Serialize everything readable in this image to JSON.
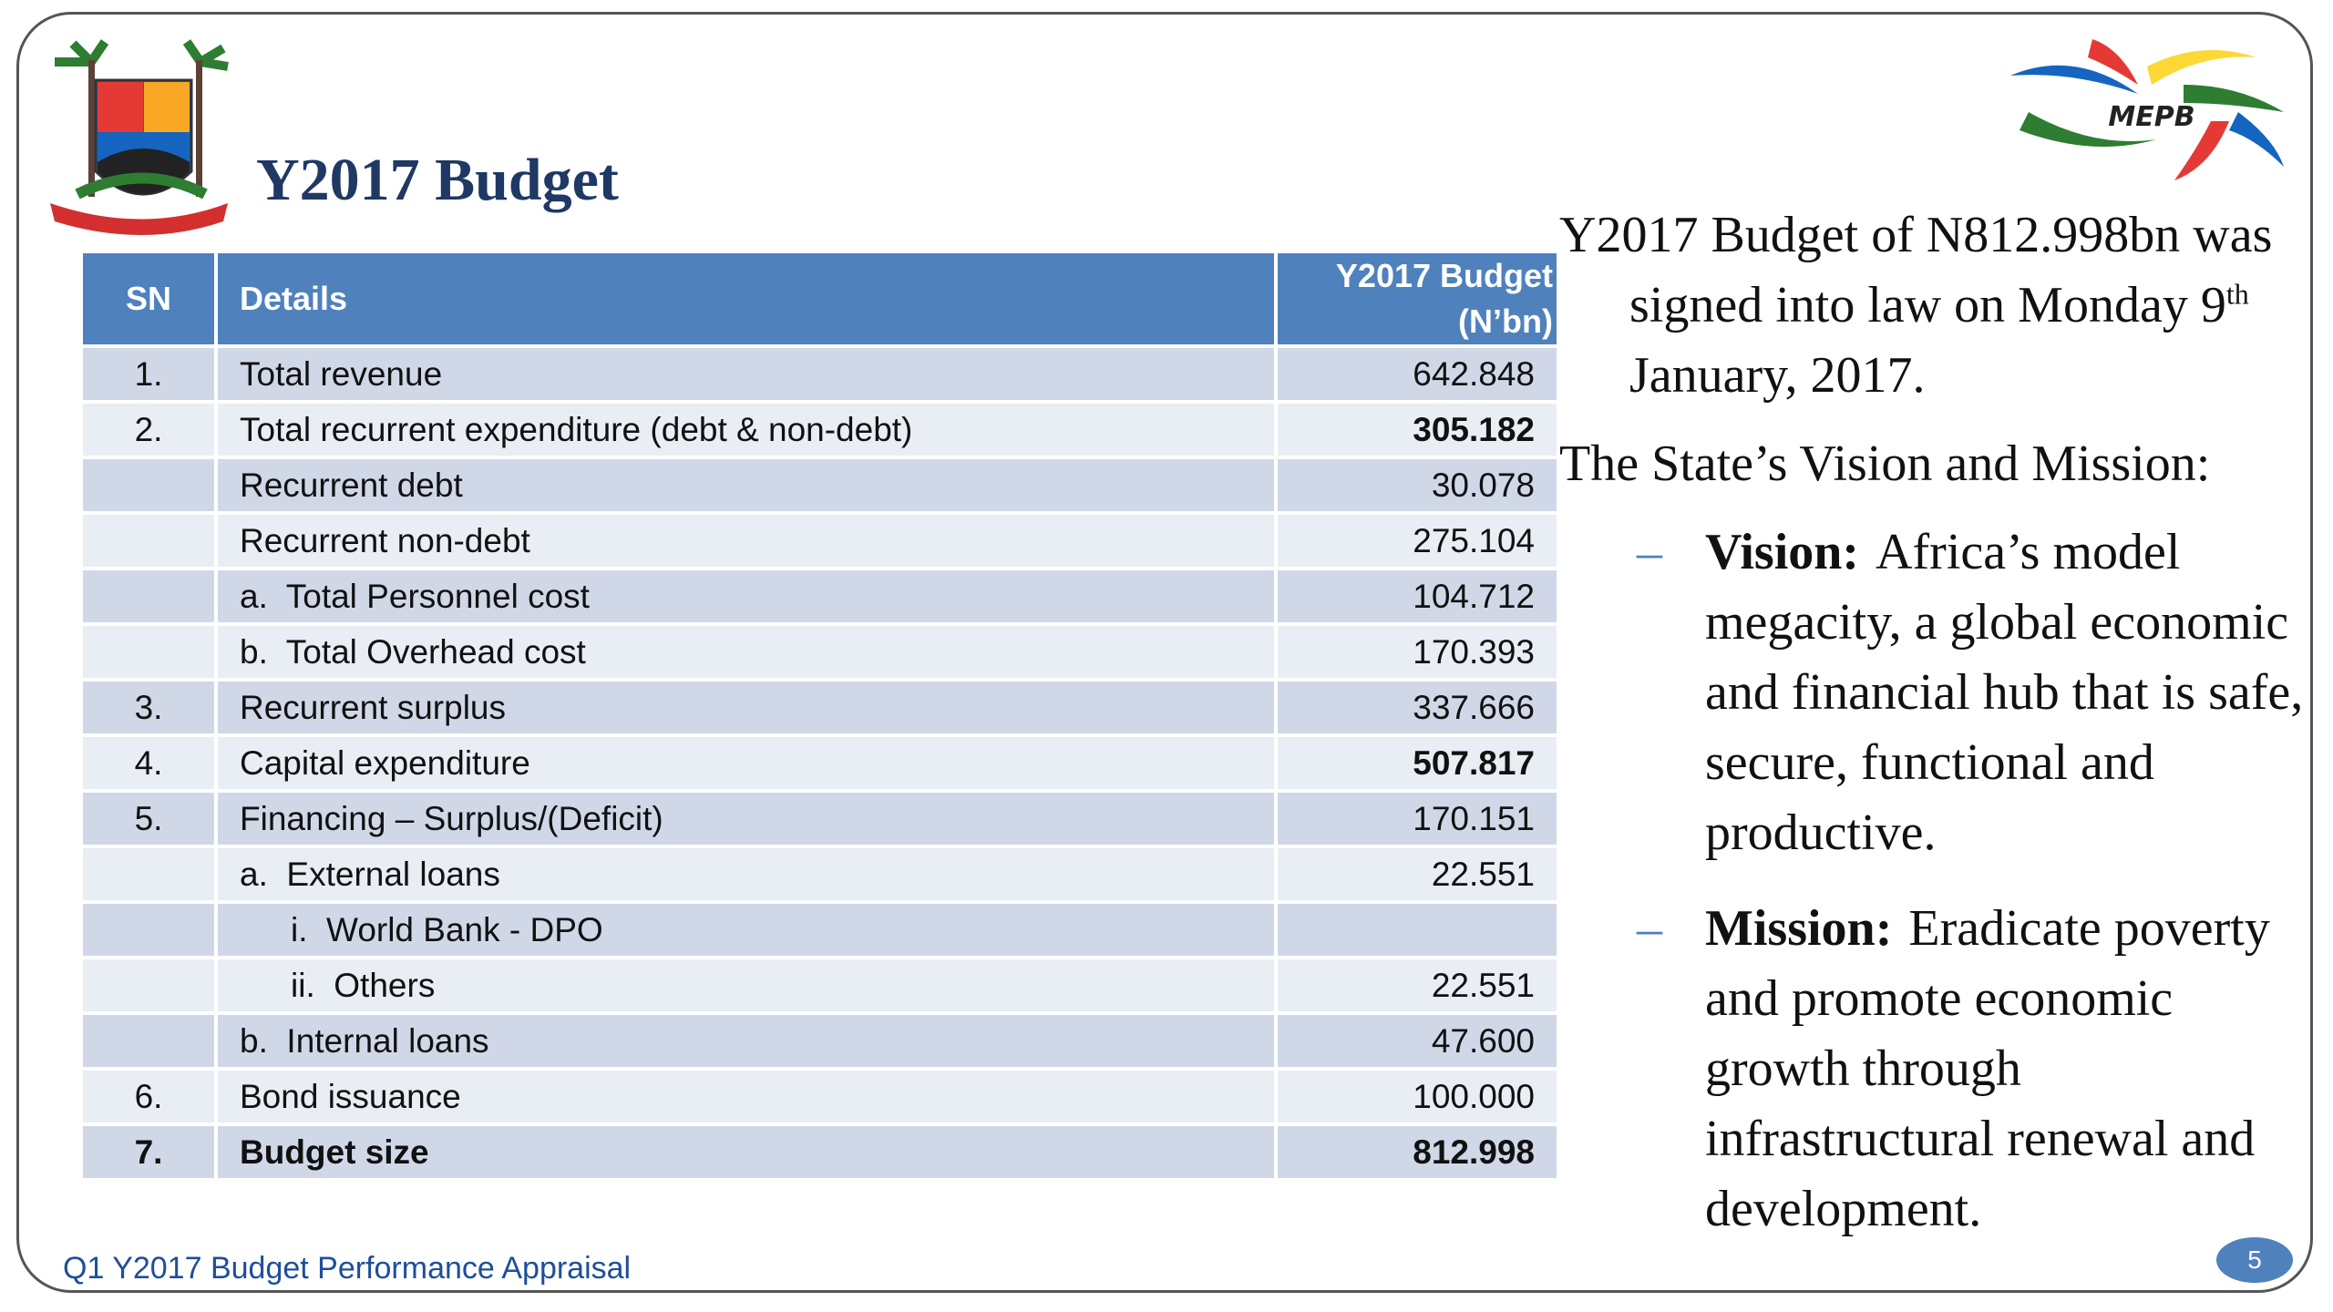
{
  "header": {
    "title": "Y2017 Budget",
    "logo_text": "MEPB"
  },
  "table": {
    "headers": [
      "SN",
      "Details",
      "Y2017 Budget (N’bn)"
    ],
    "rows": [
      [
        "1.",
        "Total revenue",
        "642.848"
      ],
      [
        "2.",
        "Total recurrent expenditure (debt & non-debt)",
        "305.182"
      ],
      [
        null,
        "Recurrent debt",
        "30.078"
      ],
      [
        null,
        "Recurrent non-debt",
        "275.104"
      ],
      [
        null,
        "a.  Total Personnel cost",
        "104.712"
      ],
      [
        null,
        "b.  Total Overhead cost",
        "170.393"
      ],
      [
        "3.",
        "Recurrent surplus",
        "337.666"
      ],
      [
        "4.",
        "Capital expenditure",
        "507.817"
      ],
      [
        "5.",
        "Financing – Surplus/(Deficit)",
        "170.151"
      ],
      [
        null,
        "a.  External loans",
        "22.551"
      ],
      [
        null,
        "i.  World Bank - DPO",
        null
      ],
      [
        null,
        "ii.  Others",
        "22.551"
      ],
      [
        null,
        "b.  Internal loans",
        "47.600"
      ],
      [
        "6.",
        "Bond issuance",
        "100.000"
      ],
      [
        "7.",
        "Budget size",
        "812.998"
      ]
    ]
  },
  "side": {
    "intro": [
      "Y2017 Budget of N812.998bn was signed into law on Monday 9",
      "th",
      " January, 2017."
    ],
    "lead": "The State’s Vision and Mission:",
    "bullets": [
      {
        "label": "Vision:",
        "text": "Africa’s model megacity, a global economic and financial hub that is safe, secure, functional and productive."
      },
      {
        "label": "Mission:",
        "text": "Eradicate poverty and promote economic growth through infrastructural renewal and development."
      }
    ]
  },
  "footer": {
    "text": "Q1 Y2017 Budget Performance Appraisal",
    "page": "5"
  }
}
